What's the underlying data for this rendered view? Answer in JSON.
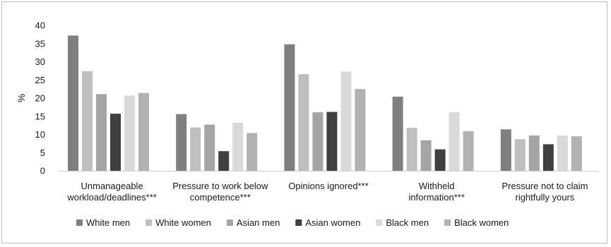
{
  "chart_data": {
    "type": "bar",
    "title": "",
    "xlabel": "",
    "ylabel": "%",
    "ylim": [
      0,
      40
    ],
    "yticks": [
      0,
      5,
      10,
      15,
      20,
      25,
      30,
      35,
      40
    ],
    "grid": false,
    "legend_position": "bottom",
    "categories": [
      [
        "Unmanageable",
        "workload/deadlines***"
      ],
      [
        "Pressure to work below",
        "competence***"
      ],
      [
        "Opinions ignored***"
      ],
      [
        "Withheld",
        "information***"
      ],
      [
        "Pressure not to claim",
        "rightfully yours"
      ]
    ],
    "series": [
      {
        "name": "White men",
        "color": "#7f7f7f",
        "values": [
          37.2,
          15.6,
          34.8,
          20.4,
          11.4
        ]
      },
      {
        "name": "White women",
        "color": "#bfbfbf",
        "values": [
          27.4,
          11.9,
          26.6,
          11.8,
          8.7
        ]
      },
      {
        "name": "Asian men",
        "color": "#a5a5a5",
        "values": [
          21.1,
          12.7,
          16.1,
          8.4,
          9.7
        ]
      },
      {
        "name": "Asian women",
        "color": "#404040",
        "values": [
          15.7,
          5.4,
          16.2,
          5.9,
          7.3
        ]
      },
      {
        "name": "Black men",
        "color": "#d9d9d9",
        "values": [
          20.7,
          13.2,
          27.3,
          16.1,
          9.7
        ]
      },
      {
        "name": "Black women",
        "color": "#b2b2b2",
        "values": [
          21.4,
          10.4,
          22.5,
          10.9,
          9.5
        ]
      }
    ]
  }
}
